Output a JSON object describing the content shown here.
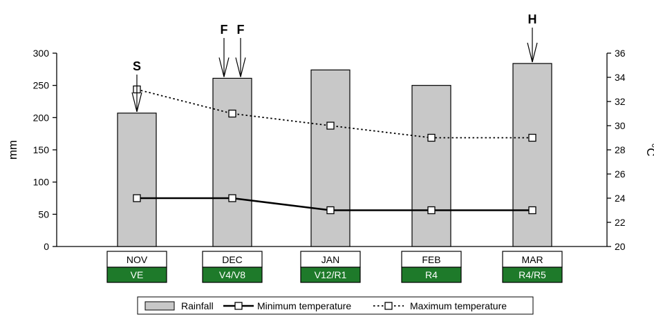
{
  "chart_data": {
    "type": "bar",
    "categories": [
      "NOV",
      "DEC",
      "JAN",
      "FEB",
      "MAR"
    ],
    "stages": [
      "VE",
      "V4/V8",
      "V12/R1",
      "R4",
      "R4/R5"
    ],
    "series": [
      {
        "name": "Rainfall",
        "kind": "bar",
        "axis": "left",
        "values": [
          207,
          261,
          274,
          250,
          284
        ]
      },
      {
        "name": "Minimum temperature",
        "kind": "line",
        "style": "solid",
        "axis": "right",
        "values": [
          24,
          24,
          23,
          23,
          23
        ]
      },
      {
        "name": "Maximum temperature",
        "kind": "line",
        "style": "dotted",
        "axis": "right",
        "values": [
          33,
          31,
          30,
          29,
          29
        ]
      }
    ],
    "ylabel": "mm",
    "y2label": "°C",
    "ylim": [
      0,
      300
    ],
    "y2lim": [
      20,
      36
    ],
    "yticks": [
      0,
      50,
      100,
      150,
      200,
      250,
      300
    ],
    "y2ticks": [
      20,
      22,
      24,
      26,
      28,
      30,
      32,
      34,
      36
    ],
    "annotations": [
      {
        "label": "S",
        "category": "NOV",
        "side": "center",
        "target": 207
      },
      {
        "label": "F",
        "category": "DEC",
        "side": "left",
        "target": 261
      },
      {
        "label": "F",
        "category": "DEC",
        "side": "right",
        "target": 261
      },
      {
        "label": "H",
        "category": "MAR",
        "side": "center",
        "target": 284
      }
    ],
    "legend_position": "bottom",
    "grid": false
  },
  "colors": {
    "bar_fill": "#c8c8c8",
    "bar_stroke": "#000000",
    "stage_fill": "#1e7a2a",
    "line": "#000000",
    "marker_fill": "#ffffff"
  }
}
